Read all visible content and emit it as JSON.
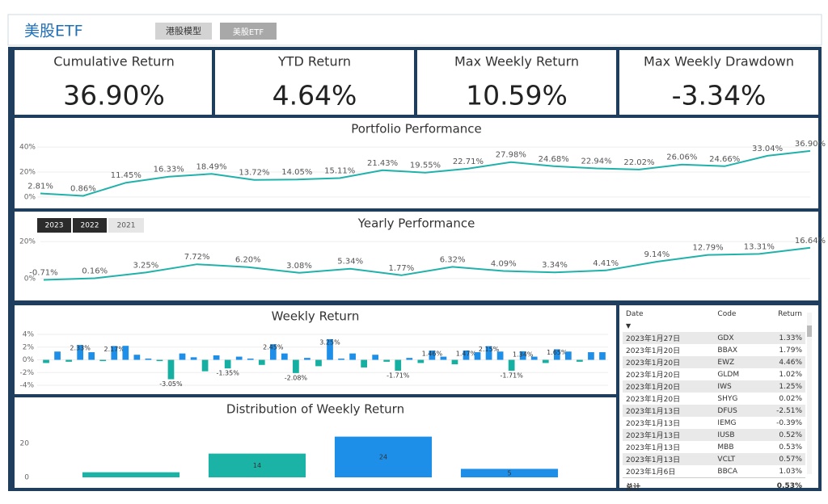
{
  "header": {
    "title": "美股ETF",
    "buttons": [
      "港股模型",
      "美股ETF"
    ]
  },
  "kpis": [
    {
      "label": "Cumulative Return",
      "value": "36.90%"
    },
    {
      "label": "YTD Return",
      "value": "4.64%"
    },
    {
      "label": "Max Weekly Return",
      "value": "10.59%"
    },
    {
      "label": "Max Weekly Drawdown",
      "value": "-3.34%"
    }
  ],
  "year_buttons": [
    "2023",
    "2022",
    "2021"
  ],
  "chart_data": [
    {
      "type": "line",
      "title": "Portfolio Performance",
      "color": "#20b2aa",
      "values": [
        2.81,
        0.86,
        11.45,
        16.33,
        18.49,
        13.72,
        14.05,
        15.11,
        21.43,
        19.55,
        22.71,
        27.98,
        24.68,
        22.94,
        22.02,
        26.06,
        24.66,
        33.04,
        36.9
      ],
      "value_labels": [
        "2.81%",
        "0.86%",
        "11.45%",
        "16.33%",
        "18.49%",
        "13.72%",
        "14.05%",
        "15.11%",
        "21.43%",
        "19.55%",
        "22.71%",
        "27.98%",
        "24.68%",
        "22.94%",
        "22.02%",
        "26.06%",
        "24.66%",
        "33.04%",
        "36.90%"
      ],
      "ylim": [
        -4,
        44
      ],
      "yticks": [
        {
          "value": 0,
          "label": "0%"
        },
        {
          "value": 20,
          "label": "20%"
        },
        {
          "value": 40,
          "label": "40%"
        }
      ],
      "grid": true
    },
    {
      "type": "line",
      "title": "Yearly Performance",
      "color": "#20b2aa",
      "values": [
        -0.71,
        0.16,
        3.25,
        7.72,
        6.2,
        3.08,
        5.34,
        1.77,
        6.32,
        4.09,
        3.34,
        4.41,
        9.14,
        12.79,
        13.31,
        16.64
      ],
      "value_labels": [
        "-0.71%",
        "0.16%",
        "3.25%",
        "7.72%",
        "6.20%",
        "3.08%",
        "5.34%",
        "1.77%",
        "6.32%",
        "4.09%",
        "3.34%",
        "4.41%",
        "9.14%",
        "12.79%",
        "13.31%",
        "16.64%"
      ],
      "ylim": [
        -4,
        24
      ],
      "yticks": [
        {
          "value": 0,
          "label": "0%"
        },
        {
          "value": 20,
          "label": "20%"
        }
      ],
      "grid": true
    },
    {
      "type": "bar",
      "title": "Weekly Return",
      "color": "#1e8fe8",
      "negative_color": "#16b0a2",
      "values": [
        -0.5,
        1.3,
        -0.3,
        2.33,
        1.2,
        -0.2,
        2.17,
        2.2,
        0.8,
        0.2,
        -0.2,
        -3.05,
        1.0,
        0.4,
        -1.8,
        0.7,
        -1.35,
        0.5,
        0.2,
        -0.8,
        2.45,
        1.0,
        -2.08,
        0.3,
        -1.0,
        3.25,
        0.2,
        1.0,
        -1.2,
        0.8,
        -0.3,
        -1.71,
        0.3,
        -0.5,
        1.46,
        0.5,
        -0.7,
        1.47,
        1.2,
        2.15,
        1.3,
        -1.71,
        1.34,
        0.5,
        -0.5,
        1.65,
        1.3,
        -0.3,
        1.2,
        1.2
      ],
      "value_labels": [
        null,
        null,
        null,
        "2.33%",
        null,
        null,
        "2.17%",
        null,
        null,
        null,
        null,
        "-3.05%",
        null,
        null,
        null,
        null,
        "-1.35%",
        null,
        null,
        null,
        "2.45%",
        null,
        "-2.08%",
        null,
        null,
        "3.25%",
        null,
        null,
        null,
        null,
        null,
        "-1.71%",
        null,
        null,
        "1.46%",
        null,
        null,
        "1.47%",
        null,
        "2.15%",
        null,
        "-1.71%",
        "1.34%",
        null,
        null,
        "1.65%",
        null,
        null,
        null,
        null
      ],
      "ylim": [
        -4,
        4
      ],
      "yticks": [
        {
          "value": -4,
          "label": "-4%"
        },
        {
          "value": -2,
          "label": "-2%"
        },
        {
          "value": 0,
          "label": "0%"
        },
        {
          "value": 2,
          "label": "2%"
        },
        {
          "value": 4,
          "label": "4%"
        }
      ],
      "grid": true
    },
    {
      "type": "bar",
      "title": "Distribution of Weekly Return",
      "colors": [
        "#1ab3a6",
        "#1ab3a6",
        "#1e8fe8",
        "#1e8fe8"
      ],
      "values": [
        3,
        14,
        24,
        5
      ],
      "value_labels": [
        null,
        "14",
        "24",
        "5"
      ],
      "ylim": [
        0,
        25
      ],
      "yticks": [
        0,
        20
      ],
      "grid": false
    }
  ],
  "table": {
    "columns": [
      "Date",
      "Code",
      "Return"
    ],
    "rows": [
      [
        "2023年1月27日",
        "GDX",
        "1.33%"
      ],
      [
        "2023年1月20日",
        "BBAX",
        "1.79%"
      ],
      [
        "2023年1月20日",
        "EWZ",
        "4.46%"
      ],
      [
        "2023年1月20日",
        "GLDM",
        "1.02%"
      ],
      [
        "2023年1月20日",
        "IWS",
        "1.25%"
      ],
      [
        "2023年1月20日",
        "SHYG",
        "0.02%"
      ],
      [
        "2023年1月13日",
        "DFUS",
        "-2.51%"
      ],
      [
        "2023年1月13日",
        "IEMG",
        "-0.39%"
      ],
      [
        "2023年1月13日",
        "IUSB",
        "0.52%"
      ],
      [
        "2023年1月13日",
        "MBB",
        "0.53%"
      ],
      [
        "2023年1月13日",
        "VCLT",
        "0.57%"
      ],
      [
        "2023年1月6日",
        "BBCA",
        "1.03%"
      ]
    ],
    "total": [
      "总计",
      "0.53%"
    ]
  }
}
